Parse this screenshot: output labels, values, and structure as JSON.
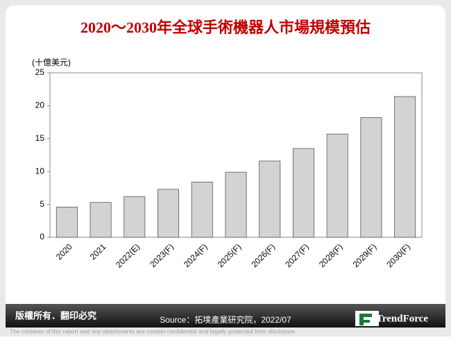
{
  "chart_data": {
    "type": "bar",
    "title": "2020～2030年全球手術機器人市場規模預估",
    "y_label": "(十億美元)",
    "categories": [
      "2020",
      "2021",
      "2022(E)",
      "2023(F)",
      "2024(F)",
      "2025(F)",
      "2026(F)",
      "2027(F)",
      "2028(F)",
      "2029(F)",
      "2030(F)"
    ],
    "values": [
      4.6,
      5.3,
      6.2,
      7.3,
      8.4,
      9.9,
      11.6,
      13.5,
      15.7,
      18.2,
      21.4
    ],
    "color": "#d3d3d3",
    "ylim": [
      0,
      25
    ],
    "yticks": [
      0,
      5,
      10,
      15,
      20,
      25
    ],
    "grid": false
  },
  "footer": {
    "rights": "版權所有．翻印必究",
    "source": "Source：拓墣產業研究院，2022/07",
    "brand": "TrendForce",
    "disclaimer": "The contents of this report and any attachments are contain confidential and legally protected from disclosure."
  }
}
